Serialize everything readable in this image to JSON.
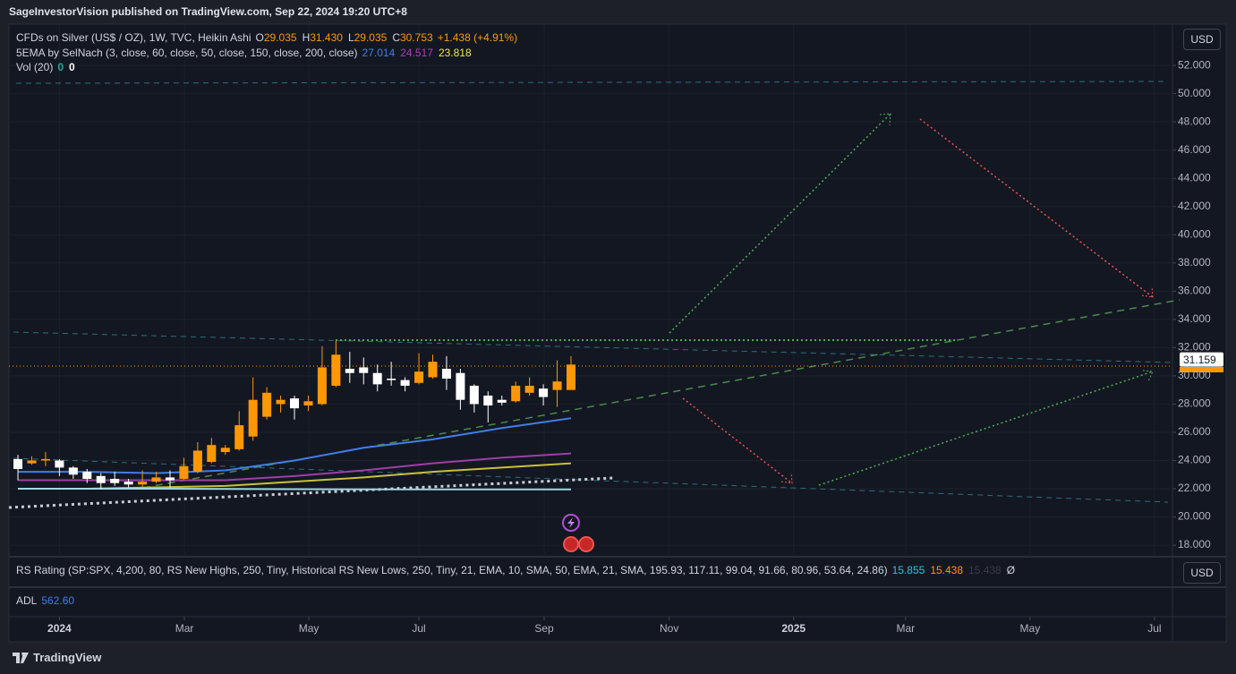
{
  "header": {
    "title": "SageInvestorVision published on TradingView.com, Sep 22, 2024 19:20 UTC+8"
  },
  "legend": {
    "symbol": "CFDs on Silver (US$ / OZ), 1W, TVC, Heikin Ashi",
    "ohlc": [
      {
        "key": "O",
        "value": "29.035"
      },
      {
        "key": "H",
        "value": "31.430"
      },
      {
        "key": "L",
        "value": "29.035"
      },
      {
        "key": "C",
        "value": "30.753"
      }
    ],
    "change": "+1.438 (+4.91%)",
    "ema_title": "5EMA by SelNach (3, close, 60, close, 50, close, 150, close, 200, close)",
    "ema_values": [
      {
        "value": "27.014",
        "color": "#3f7ee8"
      },
      {
        "value": "24.517",
        "color": "#b03fb5"
      },
      {
        "value": "23.818",
        "color": "#f2e93b"
      }
    ],
    "vol_title": "Vol (20)",
    "vol_values": [
      {
        "value": "0",
        "color": "#26a69a"
      },
      {
        "value": "0",
        "color": "#ffffff"
      }
    ]
  },
  "currency": "USD",
  "chart_data": {
    "type": "candlestick",
    "x": [
      -3,
      -2,
      -1,
      0,
      1,
      2,
      3,
      4,
      5,
      6,
      7,
      8,
      9,
      10,
      11,
      12,
      13,
      14,
      15,
      16,
      17,
      18,
      19,
      20,
      21,
      22,
      23,
      24,
      25,
      26,
      27,
      28,
      29,
      30,
      31,
      32,
      33,
      34,
      35,
      36,
      37
    ],
    "open": [
      24.1,
      23.8,
      24.0,
      24.0,
      23.5,
      23.2,
      22.9,
      22.7,
      22.5,
      22.3,
      22.5,
      22.8,
      22.7,
      23.2,
      23.9,
      24.6,
      24.8,
      25.7,
      27.1,
      28.0,
      28.4,
      27.9,
      28.0,
      29.3,
      30.5,
      30.6,
      30.2,
      29.8,
      29.7,
      29.5,
      29.9,
      30.5,
      30.2,
      29.3,
      28.6,
      28.3,
      28.2,
      28.8,
      29.1,
      29.0,
      29.0
    ],
    "high": [
      24.4,
      24.3,
      24.6,
      24.1,
      23.6,
      23.4,
      23.1,
      23.2,
      22.7,
      23.3,
      23.2,
      23.3,
      24.2,
      25.3,
      25.6,
      25.1,
      27.5,
      29.9,
      29.2,
      28.6,
      28.6,
      28.6,
      32.1,
      32.5,
      31.7,
      31.3,
      30.8,
      31.0,
      29.9,
      31.6,
      31.5,
      31.4,
      30.5,
      29.4,
      28.9,
      28.6,
      29.6,
      29.9,
      29.4,
      31.1,
      31.4
    ],
    "low": [
      22.6,
      23.7,
      23.6,
      22.9,
      22.7,
      22.4,
      22.0,
      22.2,
      22.1,
      22.1,
      22.4,
      22.1,
      22.6,
      23.1,
      23.8,
      24.4,
      24.7,
      25.4,
      26.9,
      27.4,
      26.9,
      27.5,
      27.9,
      29.2,
      29.5,
      29.4,
      28.9,
      29.3,
      28.9,
      29.4,
      29.8,
      29.0,
      27.6,
      27.4,
      26.7,
      27.9,
      28.1,
      28.6,
      27.9,
      27.8,
      29.0
    ],
    "close": [
      23.4,
      24.0,
      24.1,
      23.5,
      23.0,
      22.7,
      22.4,
      22.4,
      22.3,
      22.5,
      22.8,
      22.6,
      23.6,
      24.7,
      25.1,
      24.9,
      26.5,
      28.3,
      28.8,
      28.3,
      27.7,
      28.2,
      30.6,
      31.5,
      30.2,
      30.2,
      29.4,
      29.7,
      29.3,
      30.3,
      31.0,
      29.8,
      28.3,
      28.0,
      27.9,
      28.1,
      29.3,
      29.3,
      28.5,
      29.6,
      30.8
    ],
    "up_color": "#ff9800",
    "down_color": "#ffffff",
    "series": [
      {
        "color": "#3f7ee8",
        "x": [
          -3,
          2,
          7,
          12,
          17,
          22,
          27,
          32,
          37
        ],
        "values": [
          23.2,
          23.2,
          23.1,
          23.3,
          24.0,
          24.9,
          25.5,
          26.3,
          27.0
        ]
      },
      {
        "color": "#9c3fa6",
        "x": [
          -3,
          2,
          7,
          12,
          17,
          22,
          27,
          32,
          37
        ],
        "values": [
          22.6,
          22.6,
          22.6,
          22.6,
          22.9,
          23.3,
          23.8,
          24.2,
          24.5
        ]
      },
      {
        "color": "#c8c03a",
        "x": [
          -3,
          2,
          7,
          12,
          17,
          22,
          27,
          32,
          37
        ],
        "values": [
          22.0,
          22.0,
          22.1,
          22.2,
          22.5,
          22.8,
          23.2,
          23.5,
          23.8
        ]
      },
      {
        "color": "#9fd8e0",
        "x": [
          -3,
          7,
          17,
          27,
          37
        ],
        "values": [
          22.0,
          22.0,
          21.97,
          21.95,
          21.95
        ]
      }
    ],
    "xlim": [
      -3.65,
      80.5
    ],
    "xticks": [
      {
        "value": 0,
        "label": "2024"
      },
      {
        "value": 9.04,
        "label": "Mar"
      },
      {
        "value": 18.04,
        "label": "May"
      },
      {
        "value": 26.0,
        "label": "Jul"
      },
      {
        "value": 35.06,
        "label": "Sep"
      },
      {
        "value": 44.1,
        "label": "Nov"
      },
      {
        "value": 53.1,
        "label": "2025"
      },
      {
        "value": 61.2,
        "label": "Mar"
      },
      {
        "value": 70.2,
        "label": "May"
      },
      {
        "value": 79.2,
        "label": "Jul"
      }
    ],
    "ylim": [
      17.18,
      54.86
    ],
    "yticks": [
      {
        "value": 18,
        "label": "18.000"
      },
      {
        "value": 20,
        "label": "20.000"
      },
      {
        "value": 22,
        "label": "22.000"
      },
      {
        "value": 24,
        "label": "24.000"
      },
      {
        "value": 26,
        "label": "26.000"
      },
      {
        "value": 28,
        "label": "28.000"
      },
      {
        "value": 30,
        "label": "30.000"
      },
      {
        "value": 32,
        "label": "32.000"
      },
      {
        "value": 34,
        "label": "34.000"
      },
      {
        "value": 36,
        "label": "36.000"
      },
      {
        "value": 38,
        "label": "38.000"
      },
      {
        "value": 40,
        "label": "40.000"
      },
      {
        "value": 42,
        "label": "42.000"
      },
      {
        "value": 44,
        "label": "44.000"
      },
      {
        "value": 46,
        "label": "46.000"
      },
      {
        "value": 48,
        "label": "48.000"
      },
      {
        "value": 50,
        "label": "50.000"
      },
      {
        "value": 52,
        "label": "52.000"
      }
    ],
    "grid": true,
    "last_price": {
      "value": 31.159,
      "label": "31.159"
    }
  },
  "rs_pane": {
    "title": "RS Rating (SP:SPX, 4,200, 80, RS New Highs, 250, Tiny, Historical RS New Lows, 250, Tiny, 21, EMA, 10, SMA, 50, EMA, 21, SMA, 195.93, 117.11, 99.04, 91.66, 80.96, 53.64, 24.86)",
    "values": [
      {
        "value": "15.855",
        "color": "#26c6da"
      },
      {
        "value": "15.438",
        "color": "#ff9800"
      },
      {
        "value": "15.438",
        "color": "#3a3d48"
      },
      {
        "value": "Ø",
        "color": "#d1d4dc"
      }
    ]
  },
  "adl_pane": {
    "title": "ADL",
    "value": "562.60"
  },
  "footer": {
    "brand": "TradingView"
  }
}
